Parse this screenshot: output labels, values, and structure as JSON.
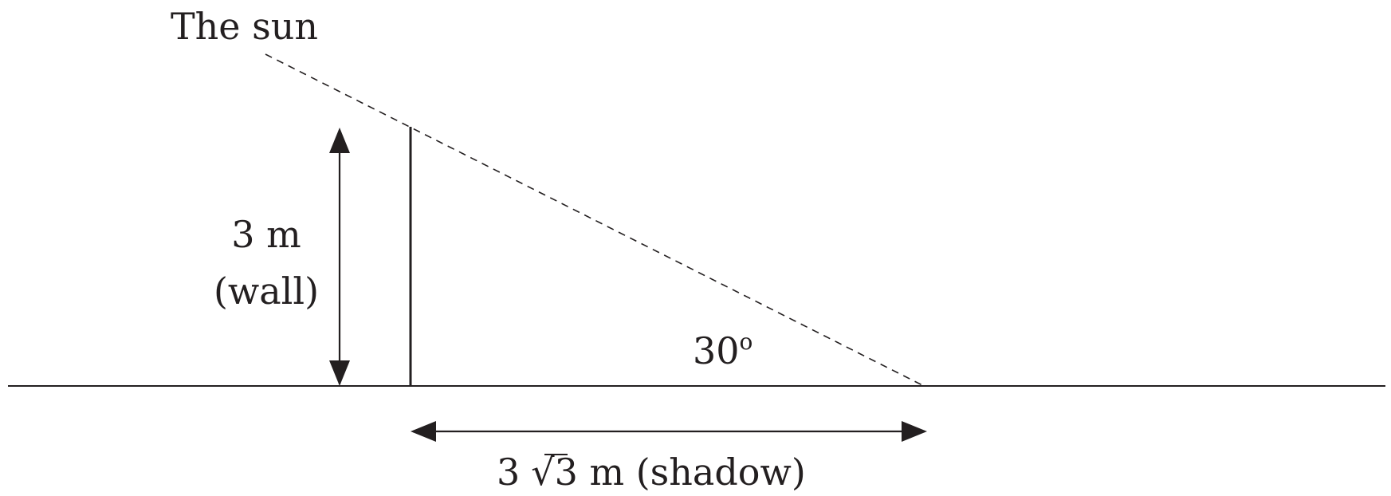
{
  "labels": {
    "sun": "The sun",
    "wall_height": "3 m",
    "wall_name": "(wall)",
    "angle_value": "30",
    "angle_degree": "o",
    "shadow_coef": "3",
    "shadow_radical": "√",
    "shadow_radicand": "3",
    "shadow_rest": " m (shadow)"
  },
  "colors": {
    "ink": "#231f20"
  }
}
